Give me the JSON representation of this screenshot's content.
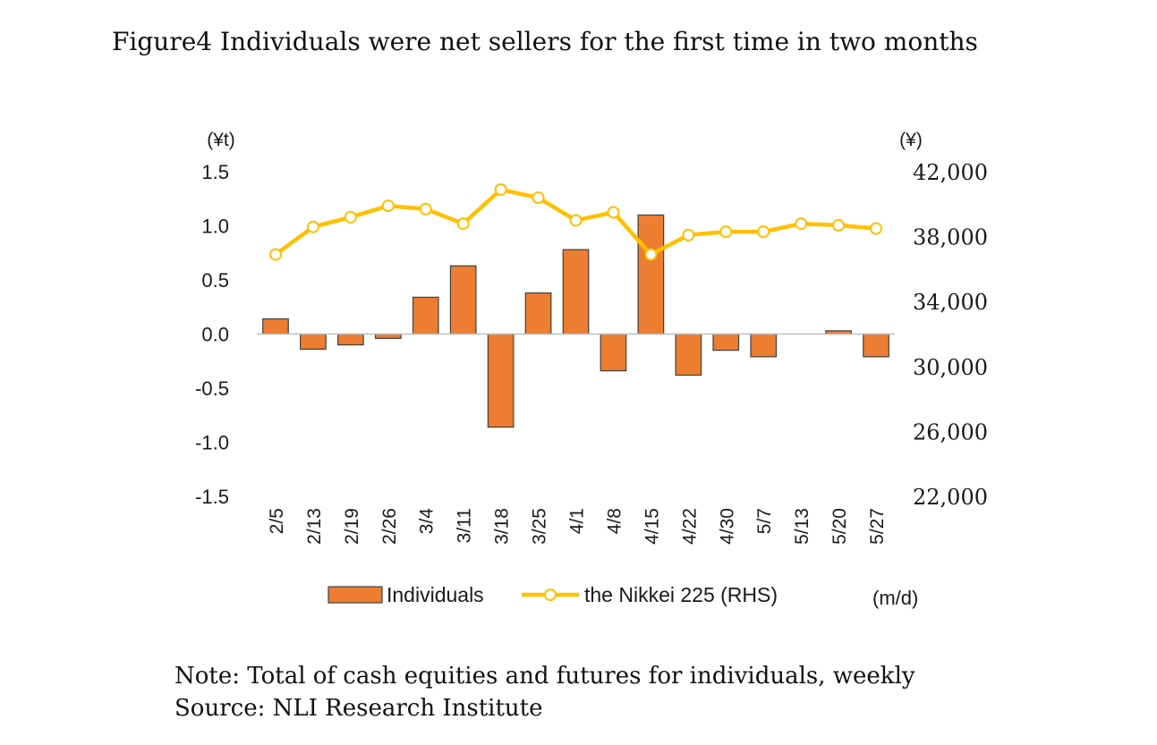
{
  "title": "Figure4 Individuals were net sellers for the first time in two months",
  "note": "Note: Total of cash equities and futures for individuals, weekly",
  "source": "Source: NLI Research Institute",
  "chart_data": {
    "type": "bar+line",
    "categories": [
      "2/5",
      "2/13",
      "2/19",
      "2/26",
      "3/4",
      "3/11",
      "3/18",
      "3/25",
      "4/1",
      "4/8",
      "4/15",
      "4/22",
      "4/30",
      "5/7",
      "5/13",
      "5/20",
      "5/27"
    ],
    "series": [
      {
        "name": "Individuals",
        "type": "bar",
        "axis": "left",
        "color": "#ED7D31",
        "values": [
          0.14,
          -0.14,
          -0.1,
          -0.04,
          0.34,
          0.63,
          -0.86,
          0.38,
          0.78,
          -0.34,
          1.1,
          -0.38,
          -0.15,
          -0.21,
          0.0,
          0.03,
          -0.21
        ]
      },
      {
        "name": "the Nikkei 225 (RHS)",
        "type": "line",
        "axis": "right",
        "color": "#FFC000",
        "values": [
          36900,
          38600,
          39200,
          39900,
          39700,
          38800,
          40900,
          40400,
          39000,
          39500,
          36900,
          38100,
          38300,
          38300,
          38800,
          38700,
          38500
        ]
      }
    ],
    "y_left": {
      "unit_label": "(¥t)",
      "min": -1.5,
      "max": 1.5,
      "ticks": [
        "1.5",
        "1.0",
        "0.5",
        "0.0",
        "-0.5",
        "-1.0",
        "-1.5"
      ],
      "tick_values": [
        1.5,
        1.0,
        0.5,
        0.0,
        -0.5,
        -1.0,
        -1.5
      ]
    },
    "y_right": {
      "unit_label": "(¥)",
      "min": 22000,
      "max": 42000,
      "ticks": [
        "42,000",
        "38,000",
        "34,000",
        "30,000",
        "26,000",
        "22,000"
      ],
      "tick_values": [
        42000,
        38000,
        34000,
        30000,
        26000,
        22000
      ]
    },
    "x_unit_label": "(m/d)",
    "legend": {
      "position": "bottom",
      "items": [
        "Individuals",
        "the Nikkei 225 (RHS)"
      ]
    }
  }
}
